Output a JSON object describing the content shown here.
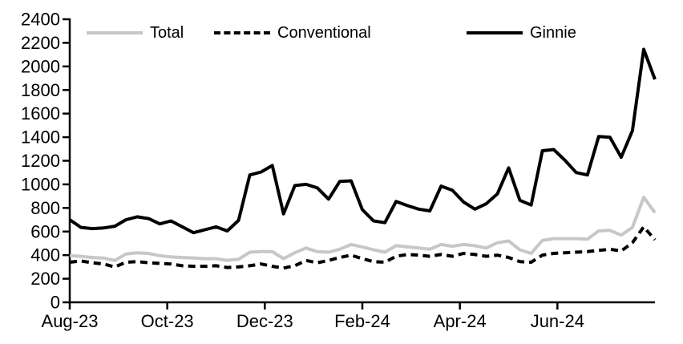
{
  "chart_data": {
    "type": "line",
    "title": "",
    "xlabel": "",
    "ylabel": "",
    "ylim": [
      0,
      2400
    ],
    "y_tick_step": 200,
    "y_tick_labels": [
      "0",
      "200",
      "400",
      "600",
      "800",
      "1000",
      "1200",
      "1400",
      "1600",
      "1800",
      "2000",
      "2200",
      "2400"
    ],
    "x_tick_labels": [
      "Aug-23",
      "Oct-23",
      "Dec-23",
      "Feb-24",
      "Apr-24",
      "Jun-24"
    ],
    "x_tick_months": [
      0,
      2,
      4,
      6,
      8,
      10
    ],
    "x_unit": "weekly observations, Aug-23 through Aug-24",
    "n_points": 53,
    "grid": false,
    "legend_position": "top",
    "axis_color": "#000000",
    "background_color": "#ffffff",
    "series": [
      {
        "name": "Total",
        "color": "#c7c7c7",
        "style": "solid",
        "values": [
          395,
          390,
          380,
          375,
          355,
          410,
          420,
          415,
          395,
          385,
          380,
          375,
          370,
          370,
          355,
          365,
          425,
          430,
          430,
          370,
          420,
          460,
          430,
          425,
          450,
          490,
          470,
          445,
          425,
          480,
          470,
          460,
          450,
          490,
          475,
          490,
          480,
          460,
          505,
          520,
          445,
          415,
          525,
          540,
          540,
          540,
          535,
          605,
          610,
          570,
          635,
          890,
          760
        ]
      },
      {
        "name": "Conventional",
        "color": "#000000",
        "style": "dashed",
        "values": [
          340,
          350,
          335,
          325,
          300,
          340,
          345,
          335,
          330,
          325,
          310,
          305,
          305,
          310,
          295,
          300,
          310,
          325,
          305,
          290,
          310,
          355,
          335,
          355,
          380,
          400,
          370,
          345,
          340,
          390,
          405,
          400,
          390,
          405,
          390,
          415,
          405,
          390,
          400,
          380,
          345,
          340,
          400,
          415,
          420,
          425,
          430,
          440,
          450,
          435,
          505,
          640,
          530
        ]
      },
      {
        "name": "Ginnie",
        "color": "#000000",
        "style": "solid",
        "values": [
          700,
          635,
          625,
          630,
          645,
          700,
          725,
          710,
          665,
          690,
          640,
          590,
          615,
          640,
          605,
          695,
          1080,
          1105,
          1160,
          750,
          990,
          1000,
          970,
          875,
          1025,
          1030,
          785,
          690,
          675,
          855,
          820,
          790,
          775,
          985,
          950,
          850,
          790,
          835,
          920,
          1140,
          865,
          825,
          1285,
          1295,
          1205,
          1100,
          1080,
          1405,
          1400,
          1230,
          1455,
          2145,
          1890
        ]
      }
    ]
  }
}
